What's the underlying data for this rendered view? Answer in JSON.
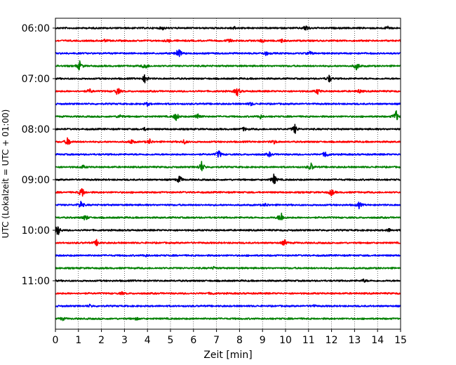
{
  "chart_data": {
    "type": "line",
    "title": "",
    "xlabel": "Zeit  [min]",
    "ylabel": "UTC (Lokalzeit = UTC + 01:00)",
    "xlim": [
      0,
      15
    ],
    "x_ticks": [
      "0",
      "1",
      "2",
      "3",
      "4",
      "5",
      "6",
      "7",
      "8",
      "9",
      "10",
      "11",
      "12",
      "13",
      "14",
      "15"
    ],
    "y_tick_labels": [
      "06:00",
      "07:00",
      "08:00",
      "09:00",
      "10:00",
      "11:00"
    ],
    "grid": "vertical dotted at each minute",
    "line_interval_min": 15,
    "color_cycle": [
      "#000000",
      "#ff0000",
      "#0000ff",
      "#008000"
    ],
    "traces": [
      {
        "start": "06:00",
        "color": "#000000",
        "events": [
          [
            4.65,
            0.25
          ],
          [
            7.75,
            0.28
          ],
          [
            10.9,
            0.6
          ],
          [
            14.45,
            0.3
          ]
        ]
      },
      {
        "start": "06:15",
        "color": "#ff0000",
        "events": [
          [
            2.15,
            0.18
          ],
          [
            4.9,
            0.28
          ],
          [
            7.55,
            0.3
          ],
          [
            9.0,
            0.3
          ],
          [
            9.85,
            0.3
          ]
        ]
      },
      {
        "start": "06:30",
        "color": "#0000ff",
        "events": [
          [
            5.35,
            1.0
          ],
          [
            9.15,
            0.35
          ],
          [
            11.05,
            0.3
          ]
        ]
      },
      {
        "start": "06:45",
        "color": "#008000",
        "events": [
          [
            1.05,
            0.8
          ],
          [
            3.9,
            0.6
          ],
          [
            13.1,
            0.7
          ]
        ]
      },
      {
        "start": "07:00",
        "color": "#000000",
        "events": [
          [
            3.9,
            0.8
          ],
          [
            11.9,
            0.6
          ]
        ]
      },
      {
        "start": "07:15",
        "color": "#ff0000",
        "events": [
          [
            1.5,
            0.35
          ],
          [
            2.7,
            0.7
          ],
          [
            7.9,
            0.8
          ],
          [
            11.4,
            0.45
          ],
          [
            13.2,
            0.3
          ]
        ]
      },
      {
        "start": "07:30",
        "color": "#0000ff",
        "events": [
          [
            4.0,
            0.3
          ],
          [
            8.5,
            0.25
          ]
        ]
      },
      {
        "start": "07:45",
        "color": "#008000",
        "events": [
          [
            2.8,
            0.35
          ],
          [
            5.25,
            0.7
          ],
          [
            6.2,
            0.7
          ],
          [
            8.9,
            0.35
          ],
          [
            14.8,
            1.0
          ]
        ]
      },
      {
        "start": "08:00",
        "color": "#000000",
        "events": [
          [
            3.9,
            0.25
          ],
          [
            8.2,
            0.3
          ],
          [
            10.4,
            0.8
          ]
        ]
      },
      {
        "start": "08:15",
        "color": "#ff0000",
        "events": [
          [
            0.55,
            0.8
          ],
          [
            3.3,
            0.4
          ],
          [
            4.1,
            0.4
          ],
          [
            5.6,
            0.35
          ],
          [
            9.5,
            0.3
          ]
        ]
      },
      {
        "start": "08:30",
        "color": "#0000ff",
        "events": [
          [
            7.1,
            0.7
          ],
          [
            9.3,
            0.35
          ],
          [
            11.75,
            0.6
          ]
        ]
      },
      {
        "start": "08:45",
        "color": "#008000",
        "events": [
          [
            1.2,
            0.25
          ],
          [
            6.35,
            0.9
          ],
          [
            11.1,
            0.7
          ]
        ]
      },
      {
        "start": "09:00",
        "color": "#000000",
        "events": [
          [
            5.4,
            0.7
          ],
          [
            9.5,
            0.9
          ]
        ]
      },
      {
        "start": "09:15",
        "color": "#ff0000",
        "events": [
          [
            1.15,
            0.9
          ],
          [
            12.0,
            0.6
          ]
        ]
      },
      {
        "start": "09:30",
        "color": "#0000ff",
        "events": [
          [
            1.1,
            0.7
          ],
          [
            9.15,
            0.25
          ],
          [
            13.2,
            0.5
          ]
        ]
      },
      {
        "start": "09:45",
        "color": "#008000",
        "events": [
          [
            1.3,
            0.5
          ],
          [
            9.8,
            1.0
          ]
        ]
      },
      {
        "start": "10:00",
        "color": "#000000",
        "events": [
          [
            0.1,
            1.0
          ],
          [
            14.5,
            0.25
          ]
        ]
      },
      {
        "start": "10:15",
        "color": "#ff0000",
        "events": [
          [
            1.8,
            0.5
          ],
          [
            9.95,
            0.5
          ]
        ]
      },
      {
        "start": "10:30",
        "color": "#0000ff",
        "events": [
          [
            3.9,
            0.2
          ]
        ]
      },
      {
        "start": "10:45",
        "color": "#008000",
        "events": [
          [
            6.9,
            0.2
          ]
        ]
      },
      {
        "start": "11:00",
        "color": "#000000",
        "events": [
          [
            13.4,
            0.25
          ]
        ]
      },
      {
        "start": "11:15",
        "color": "#ff0000",
        "events": [
          [
            2.9,
            0.2
          ],
          [
            6.8,
            0.2
          ]
        ]
      },
      {
        "start": "11:30",
        "color": "#0000ff",
        "events": [
          [
            1.5,
            0.2
          ],
          [
            11.2,
            0.2
          ]
        ]
      },
      {
        "start": "11:45",
        "color": "#008000",
        "events": [
          [
            0.3,
            0.25
          ],
          [
            3.5,
            0.2
          ]
        ]
      }
    ]
  }
}
